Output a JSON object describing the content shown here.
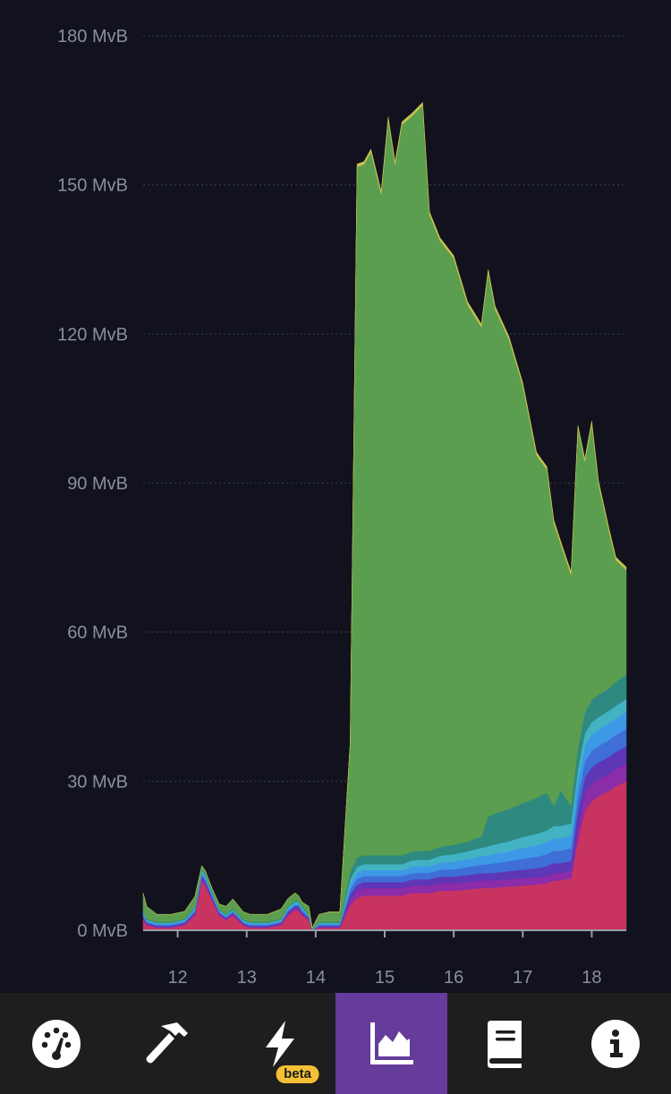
{
  "chart_data": {
    "type": "area",
    "stacked": true,
    "title": "",
    "xlabel": "",
    "ylabel": "",
    "y_unit": "MvB",
    "ylim": [
      0,
      180
    ],
    "xlim": [
      11.5,
      18.5
    ],
    "y_ticks": [
      0,
      30,
      60,
      90,
      120,
      150,
      180
    ],
    "y_tick_labels": [
      "0 MvB",
      "30 MvB",
      "60 MvB",
      "90 MvB",
      "120 MvB",
      "150 MvB",
      "180 MvB"
    ],
    "x_ticks": [
      12,
      13,
      14,
      15,
      16,
      17,
      18
    ],
    "x_tick_labels": [
      "12",
      "13",
      "14",
      "15",
      "16",
      "17",
      "18"
    ],
    "grid": true,
    "x": [
      11.5,
      11.55,
      11.7,
      11.9,
      12.1,
      12.25,
      12.35,
      12.4,
      12.5,
      12.6,
      12.7,
      12.8,
      12.95,
      13.05,
      13.3,
      13.5,
      13.6,
      13.7,
      13.75,
      13.8,
      13.9,
      13.95,
      14.05,
      14.2,
      14.35,
      14.5,
      14.6,
      14.7,
      14.8,
      14.95,
      15.05,
      15.15,
      15.25,
      15.4,
      15.55,
      15.65,
      15.8,
      16.0,
      16.2,
      16.4,
      16.5,
      16.6,
      16.8,
      17.0,
      17.2,
      17.35,
      17.45,
      17.55,
      17.7,
      17.8,
      17.9,
      18.0,
      18.1,
      18.25,
      18.35,
      18.5
    ],
    "series": [
      {
        "color": "#c8345f",
        "values": [
          2,
          1,
          0.5,
          0.5,
          1,
          3,
          10,
          9,
          6,
          3,
          2,
          3,
          1,
          0.5,
          0.5,
          1,
          3,
          4,
          4,
          3,
          2,
          0,
          0.5,
          0.5,
          0.5,
          5,
          6.5,
          7,
          7,
          7,
          7,
          7,
          7,
          7.5,
          7.5,
          7.5,
          8,
          8,
          8.2,
          8.5,
          8.5,
          8.6,
          8.8,
          9,
          9.2,
          9.5,
          10,
          10,
          10.5,
          18,
          24,
          26,
          27,
          28,
          29,
          30
        ]
      },
      {
        "color": "#8b2ca8",
        "values": [
          0.5,
          0.3,
          0.2,
          0.2,
          0.3,
          0.3,
          0.5,
          0.5,
          0.4,
          0.3,
          0.3,
          0.3,
          0.2,
          0.2,
          0.2,
          0.3,
          0.4,
          0.5,
          0.5,
          0.4,
          0.3,
          0,
          0.2,
          0.2,
          0.2,
          1.2,
          1.5,
          1.5,
          1.5,
          1.5,
          1.5,
          1.5,
          1.5,
          1.5,
          1.5,
          1.5,
          1.5,
          1.5,
          1.5,
          1.5,
          1.5,
          1.5,
          1.5,
          1.5,
          1.5,
          1.5,
          1.5,
          1.5,
          1.5,
          3,
          3.5,
          3.5,
          3.5,
          3.5,
          3.5,
          3.5
        ]
      },
      {
        "color": "#5d37b5",
        "values": [
          0.3,
          0.2,
          0.2,
          0.2,
          0.2,
          0.3,
          0.4,
          0.4,
          0.3,
          0.2,
          0.2,
          0.2,
          0.2,
          0.2,
          0.2,
          0.2,
          0.3,
          0.3,
          0.3,
          0.3,
          0.2,
          0,
          0.2,
          0.2,
          0.2,
          1,
          1.2,
          1.2,
          1.2,
          1.2,
          1.2,
          1.2,
          1.2,
          1.2,
          1.3,
          1.3,
          1.3,
          1.3,
          1.4,
          1.5,
          1.5,
          1.5,
          1.6,
          1.7,
          1.8,
          1.9,
          2,
          2,
          2,
          3,
          3.2,
          3.3,
          3.3,
          3.4,
          3.4,
          3.5
        ]
      },
      {
        "color": "#3f6ed6",
        "values": [
          0.3,
          0.2,
          0.2,
          0.2,
          0.2,
          0.3,
          0.4,
          0.4,
          0.3,
          0.2,
          0.2,
          0.2,
          0.2,
          0.2,
          0.2,
          0.2,
          0.3,
          0.3,
          0.3,
          0.3,
          0.2,
          0,
          0.2,
          0.2,
          0.2,
          1,
          1.2,
          1.2,
          1.2,
          1.2,
          1.2,
          1.2,
          1.2,
          1.3,
          1.3,
          1.3,
          1.4,
          1.5,
          1.6,
          1.7,
          1.8,
          1.9,
          2,
          2.2,
          2.3,
          2.4,
          2.5,
          2.5,
          2.5,
          3,
          3.2,
          3.3,
          3.3,
          3.4,
          3.4,
          3.5
        ]
      },
      {
        "color": "#3d98e6",
        "values": [
          0.3,
          0.2,
          0.2,
          0.2,
          0.2,
          0.3,
          0.4,
          0.4,
          0.3,
          0.2,
          0.2,
          0.2,
          0.2,
          0.2,
          0.2,
          0.2,
          0.3,
          0.3,
          0.3,
          0.3,
          0.2,
          0,
          0.2,
          0.2,
          0.2,
          1,
          1.2,
          1.2,
          1.2,
          1.2,
          1.2,
          1.2,
          1.2,
          1.3,
          1.3,
          1.3,
          1.4,
          1.5,
          1.6,
          1.7,
          1.8,
          1.9,
          2,
          2.2,
          2.3,
          2.4,
          2.5,
          2.5,
          2.5,
          3,
          3.2,
          3.3,
          3.3,
          3.4,
          3.4,
          3.5
        ]
      },
      {
        "color": "#43b3c4",
        "values": [
          0.3,
          0.2,
          0.2,
          0.2,
          0.2,
          0.3,
          0.4,
          0.4,
          0.3,
          0.2,
          0.2,
          0.2,
          0.2,
          0.2,
          0.2,
          0.2,
          0.3,
          0.3,
          0.3,
          0.3,
          0.2,
          0,
          0.2,
          0.2,
          0.2,
          1,
          1.2,
          1.2,
          1.2,
          1.2,
          1.2,
          1.2,
          1.2,
          1.3,
          1.3,
          1.3,
          1.4,
          1.5,
          1.6,
          1.7,
          1.8,
          1.9,
          2,
          2.2,
          2.3,
          2.4,
          2.5,
          2.5,
          2.5,
          2.5,
          2.5,
          2.5,
          2.5,
          2.5,
          2.5,
          2.5
        ]
      },
      {
        "color": "#2e8a80",
        "values": [
          0.3,
          0.2,
          0.2,
          0.2,
          0.2,
          0.3,
          0.4,
          0.4,
          0.3,
          0.2,
          0.2,
          0.2,
          0.2,
          0.2,
          0.2,
          0.2,
          0.3,
          0.3,
          0.3,
          0.3,
          0.2,
          0,
          0.2,
          0.2,
          0.2,
          1.5,
          1.8,
          1.8,
          1.8,
          1.8,
          1.8,
          1.8,
          1.8,
          1.8,
          1.8,
          1.8,
          1.8,
          1.9,
          2,
          2.3,
          6,
          6.2,
          6.5,
          6.8,
          7.2,
          7.6,
          4,
          7.2,
          3.5,
          4.2,
          4.2,
          4.5,
          4.5,
          4.5,
          4.8,
          5
        ]
      },
      {
        "color": "#5c9e4f",
        "values": [
          3.5,
          2.5,
          1.5,
          1.5,
          1.5,
          2,
          0.5,
          0.5,
          0.5,
          1,
          1.5,
          2,
          1.5,
          1.5,
          1.5,
          2,
          1.5,
          1.5,
          1,
          0.8,
          1.5,
          0.5,
          1.5,
          2,
          2,
          26,
          139,
          139,
          141.5,
          133,
          148,
          139,
          147,
          148,
          150,
          128,
          122,
          118,
          108,
          102.5,
          109.5,
          101.5,
          94.5,
          84,
          69,
          65,
          57,
          49.5,
          46.5,
          64.3,
          50.5,
          55.5,
          42.3,
          31.6,
          24.5,
          21
        ]
      },
      {
        "color": "#c9c24e",
        "values": [
          0,
          0,
          0,
          0,
          0,
          0,
          0,
          0,
          0,
          0,
          0,
          0,
          0,
          0,
          0,
          0,
          0,
          0,
          0,
          0,
          0,
          0,
          0,
          0,
          0,
          0,
          0.6,
          0.6,
          0.6,
          0.6,
          0.6,
          0.6,
          0.6,
          0.6,
          0.6,
          0.6,
          0.6,
          0.6,
          0.6,
          0.6,
          0.6,
          0.6,
          0.6,
          0.6,
          0.6,
          0.6,
          0.6,
          0.6,
          0.6,
          0.6,
          0.6,
          0.6,
          0.6,
          0.6,
          0.6,
          0.6
        ]
      }
    ]
  },
  "nav": {
    "items": [
      {
        "icon": "dashboard-gauge-icon"
      },
      {
        "icon": "mining-hammer-icon"
      },
      {
        "icon": "lightning-bolt-icon",
        "badge": "beta"
      },
      {
        "icon": "graphs-area-chart-icon",
        "active": true
      },
      {
        "icon": "docs-book-icon"
      },
      {
        "icon": "about-info-icon"
      }
    ],
    "active_color": "#653b9c",
    "badge_color": "#f3c034"
  }
}
